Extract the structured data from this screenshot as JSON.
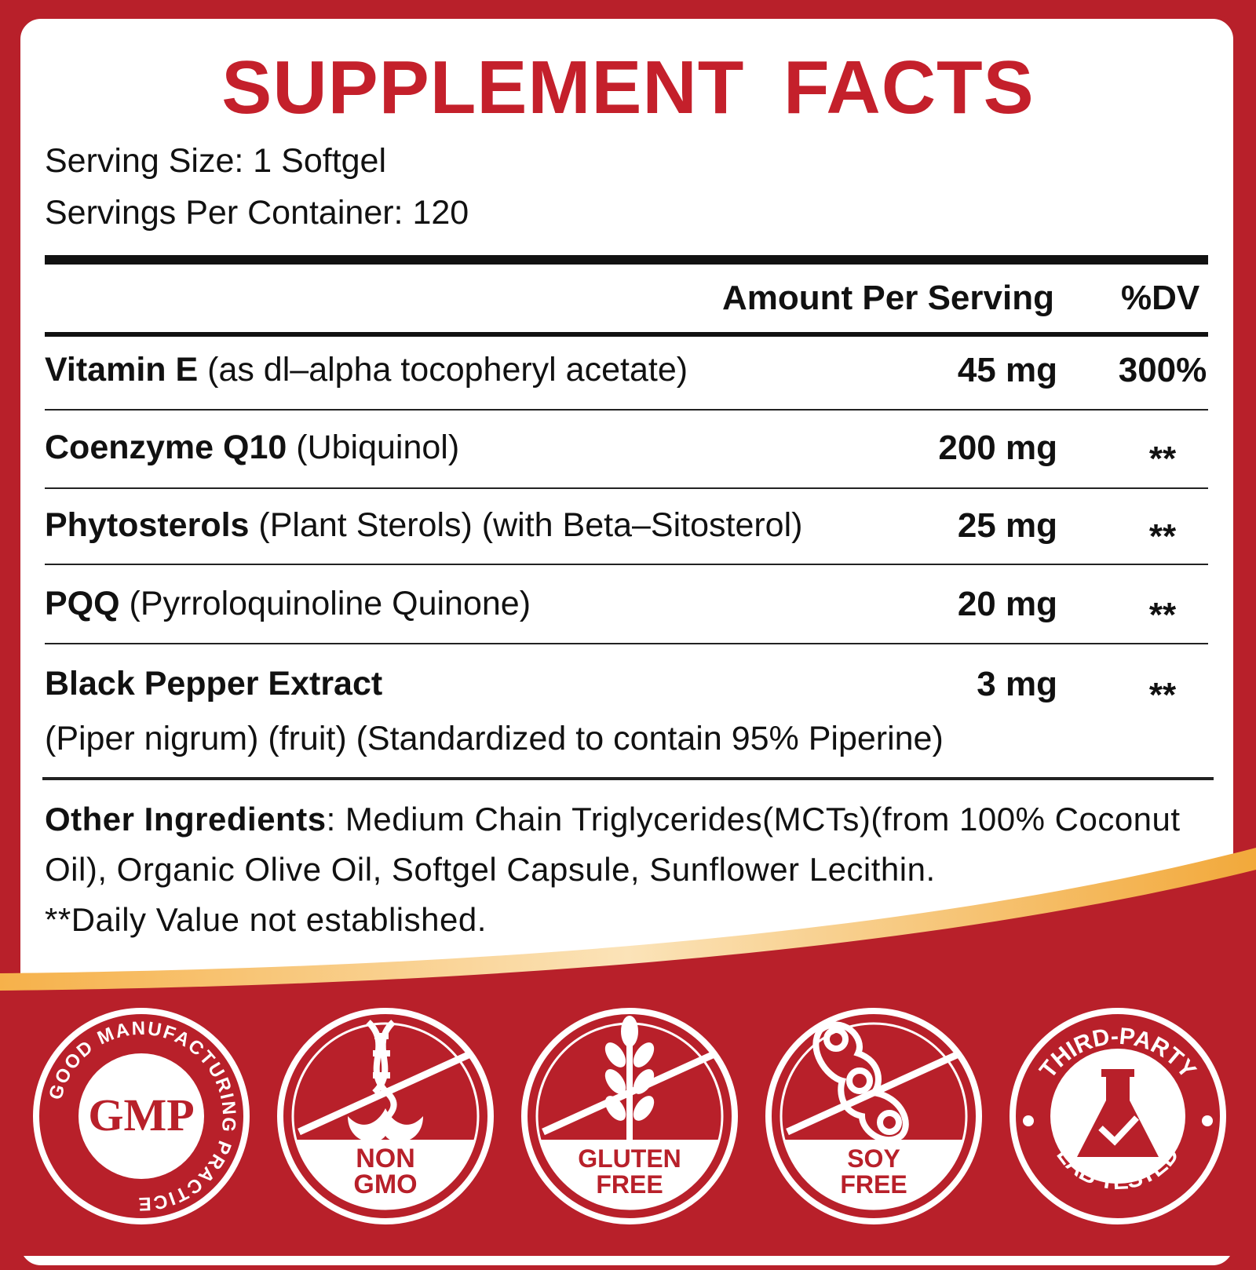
{
  "title": "SUPPLEMENT FACTS",
  "serving_size": "Serving Size: 1 Softgel",
  "servings_per_container": "Servings Per Container: 120",
  "header": {
    "amount": "Amount Per Serving",
    "dv": "%DV"
  },
  "ingredients": [
    {
      "name": "Vitamin E",
      "detail": "(as dl–alpha tocopheryl acetate)",
      "amount": "45 mg",
      "dv": "300%"
    },
    {
      "name": "Coenzyme Q10",
      "detail": "(Ubiquinol)",
      "amount": "200 mg",
      "dv": "**"
    },
    {
      "name": "Phytosterols",
      "detail": "(Plant Sterols) (with Beta–Sitosterol)",
      "amount": "25 mg",
      "dv": "**"
    },
    {
      "name": "PQQ",
      "detail": "(Pyrroloquinoline Quinone)",
      "amount": "20 mg",
      "dv": "**"
    },
    {
      "name": "Black Pepper Extract",
      "detail": "(Piper nigrum) (fruit) (Standardized to contain 95% Piperine)",
      "amount": "3 mg",
      "dv": "**"
    }
  ],
  "other_ingredients": {
    "label": "Other Ingredients",
    "text": ": Medium Chain Triglycerides(MCTs)(from 100% Coconut Oil), Organic Olive Oil, Softgel Capsule, Sunflower Lecithin.",
    "footnote": "**Daily Value not established."
  },
  "badges": {
    "gmp": {
      "center": "GMP",
      "ring": "GOOD MANUFACTURING PRACTICE"
    },
    "non_gmo": {
      "line1": "NON",
      "line2": "GMO"
    },
    "gluten_free": {
      "line1": "GLUTEN",
      "line2": "FREE"
    },
    "soy_free": {
      "line1": "SOY",
      "line2": "FREE"
    },
    "third_party": {
      "top": "THIRD-PARTY",
      "bottom": "LAB TESTED"
    }
  },
  "colors": {
    "brand_red": "#c4202b",
    "footer_red": "#b8202a",
    "gold": "#f2a93b",
    "ink": "#111111"
  }
}
